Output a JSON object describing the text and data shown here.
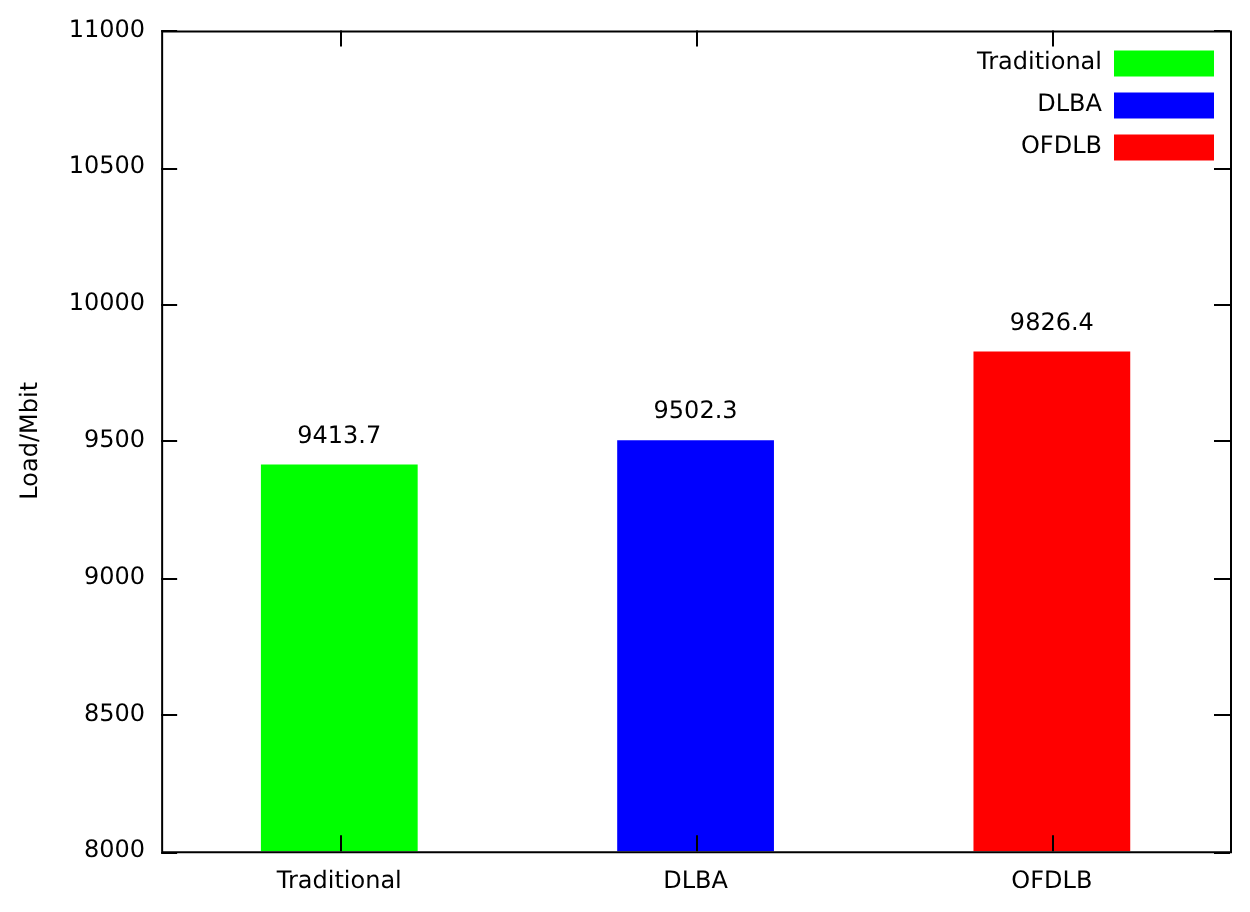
{
  "chart_data": {
    "type": "bar",
    "ylabel": "Load/Mbit",
    "categories": [
      "Traditional",
      "DLBA",
      "OFDLB"
    ],
    "series": [
      {
        "name": "Traditional",
        "color": "#00ff00",
        "values": [
          9413.7,
          null,
          null
        ]
      },
      {
        "name": "DLBA",
        "color": "#0000ff",
        "values": [
          null,
          9502.3,
          null
        ]
      },
      {
        "name": "OFDLB",
        "color": "#ff0000",
        "values": [
          null,
          null,
          9826.4
        ]
      }
    ],
    "ylim": [
      8000,
      11000
    ],
    "yticks": [
      8000,
      8500,
      9000,
      9500,
      10000,
      10500,
      11000
    ],
    "grid": false,
    "legend": "top right",
    "data_labels": true
  }
}
